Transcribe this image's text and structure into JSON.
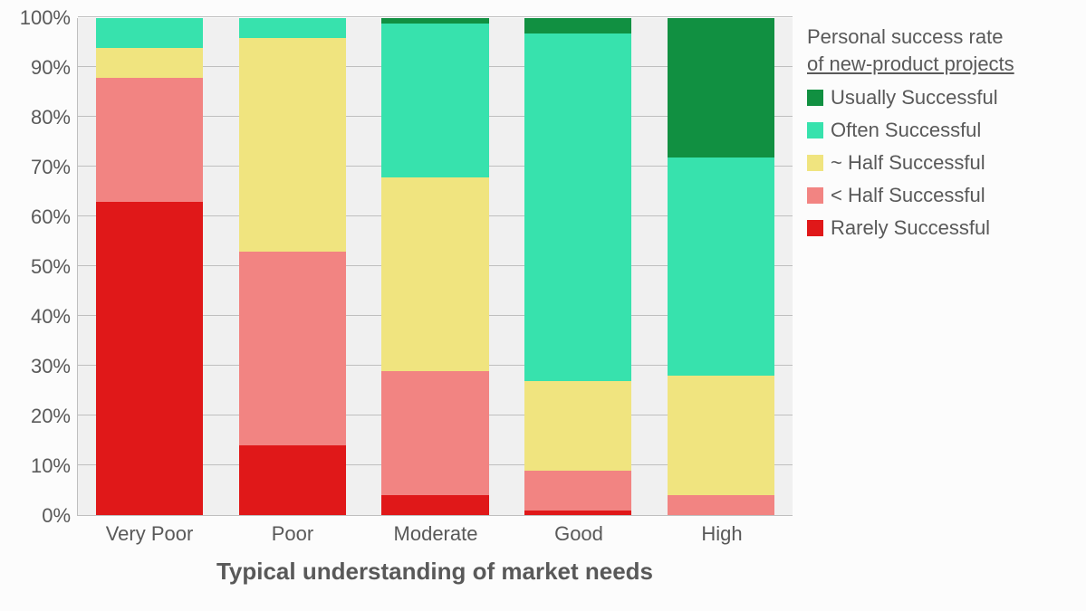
{
  "chart": {
    "type": "stacked-bar-100pct",
    "background_color": "#fcfcfc",
    "plot_background_color": "#f0f0f0",
    "grid_color": "#bfbfbf",
    "text_color": "#595959",
    "xlabel": "Typical understanding of market needs",
    "xlabel_fontsize": 26,
    "xlabel_fontweight": "bold",
    "categories": [
      "Very Poor",
      "Poor",
      "Moderate",
      "Good",
      "High"
    ],
    "category_fontsize": 22,
    "ylim": [
      0,
      100
    ],
    "ytick_step": 10,
    "ytick_suffix": "%",
    "ytick_fontsize": 22,
    "bar_width_pct": 15,
    "series": [
      {
        "key": "rarely",
        "label": "Rarely Successful",
        "color": "#e01819",
        "values": [
          63,
          14,
          4,
          1,
          0
        ]
      },
      {
        "key": "lt_half",
        "label": "< Half Successful",
        "color": "#f28482",
        "values": [
          25,
          39,
          25,
          8,
          4
        ]
      },
      {
        "key": "half",
        "label": "~ Half Successful",
        "color": "#f0e47f",
        "values": [
          6,
          43,
          39,
          18,
          24
        ]
      },
      {
        "key": "often",
        "label": "Often Successful",
        "color": "#37e2ad",
        "values": [
          6,
          4,
          31,
          70,
          44
        ]
      },
      {
        "key": "usually",
        "label": "Usually Successful",
        "color": "#119041",
        "values": [
          0,
          0,
          1,
          3,
          28
        ]
      }
    ],
    "legend": {
      "title_line1": "Personal success rate",
      "title_line2": "of new-product projects",
      "title_fontsize": 22,
      "item_fontsize": 22,
      "swatch_size": 18,
      "display_order": [
        "usually",
        "often",
        "half",
        "lt_half",
        "rarely"
      ]
    }
  }
}
